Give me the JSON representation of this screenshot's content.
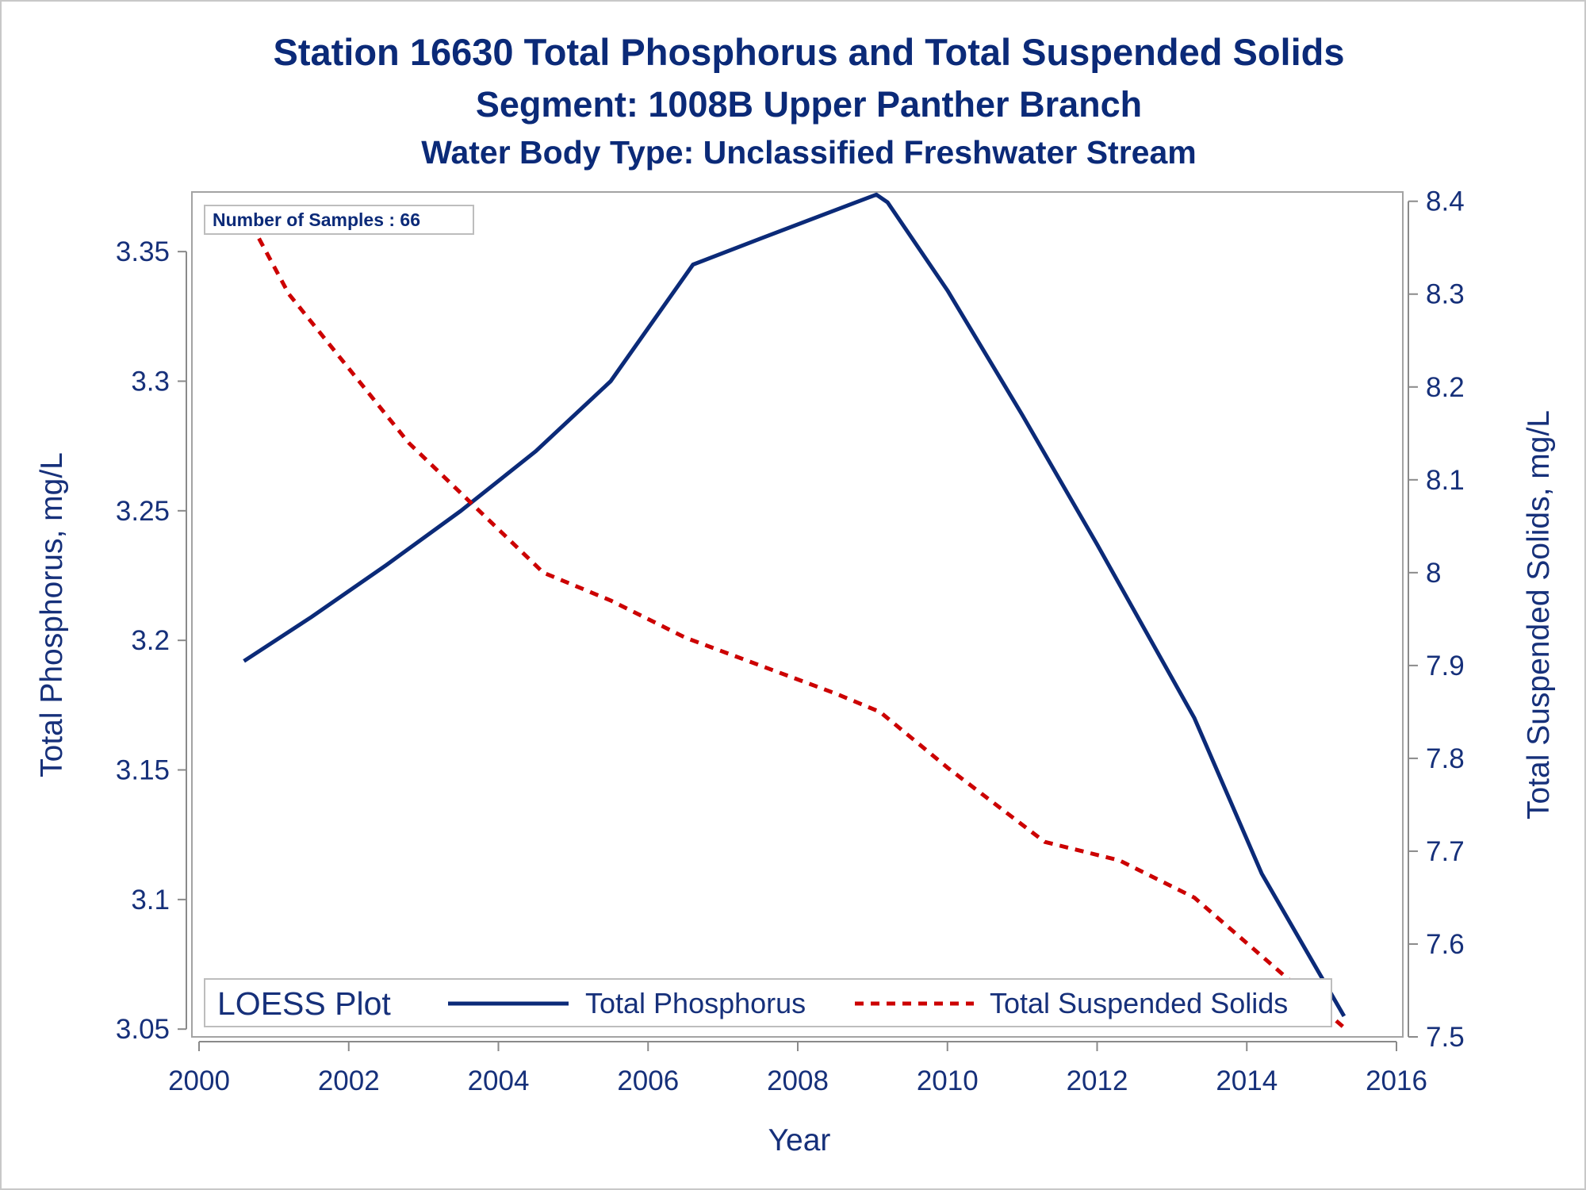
{
  "chart_data": {
    "type": "line",
    "title": "Station 16630  Total Phosphorus and Total Suspended Solids",
    "subtitle": "Segment: 1008B  Upper Panther Branch",
    "subtitle2": "Water Body Type: Unclassified Freshwater Stream",
    "xlabel": "Year",
    "ylabel_left": "Total Phosphorus, mg/L",
    "ylabel_right": "Total Suspended Solids, mg/L",
    "xlim": [
      2000,
      2016
    ],
    "ylim_left": [
      3.047,
      3.373
    ],
    "ylim_right": [
      7.5,
      8.41
    ],
    "x_ticks": [
      2000,
      2002,
      2004,
      2006,
      2008,
      2010,
      2012,
      2014,
      2016
    ],
    "x_tick_labels": [
      "2000",
      "2002",
      "2004",
      "2006",
      "2008",
      "2010",
      "2012",
      "2014",
      "2016"
    ],
    "y_left_ticks": [
      3.05,
      3.1,
      3.15,
      3.2,
      3.25,
      3.3,
      3.35
    ],
    "y_left_tick_labels": [
      "3.05",
      "3.1",
      "3.15",
      "3.2",
      "3.25",
      "3.3",
      "3.35"
    ],
    "y_right_ticks": [
      7.5,
      7.6,
      7.7,
      7.8,
      7.9,
      8.0,
      8.1,
      8.2,
      8.3,
      8.4
    ],
    "y_right_tick_labels": [
      "7.5",
      "7.6",
      "7.7",
      "7.8",
      "7.9",
      "8",
      "8.1",
      "8.2",
      "8.3",
      "8.4"
    ],
    "inset": "Number of Samples : 66",
    "legend": {
      "title": "LOESS Plot",
      "position": "bottom-inside"
    },
    "series": [
      {
        "name": "Total Phosphorus",
        "axis": "left",
        "color": "#0b2a78",
        "dash": "solid",
        "x": [
          2000.6,
          2001.5,
          2002.5,
          2003.5,
          2004.5,
          2005.5,
          2006.6,
          2007.5,
          2008.5,
          2009.05,
          2009.2,
          2010.0,
          2011.0,
          2012.0,
          2013.3,
          2014.2,
          2015.3
        ],
        "y": [
          3.192,
          3.209,
          3.229,
          3.25,
          3.273,
          3.3,
          3.345,
          3.355,
          3.366,
          3.372,
          3.369,
          3.335,
          3.287,
          3.237,
          3.17,
          3.11,
          3.055
        ]
      },
      {
        "name": "Total Suspended Solids",
        "axis": "right",
        "color": "#cc0000",
        "dash": "dashed",
        "x": [
          2000.6,
          2001.2,
          2002.0,
          2002.8,
          2003.7,
          2004.6,
          2005.5,
          2006.5,
          2007.5,
          2008.5,
          2009.1,
          2010.0,
          2011.3,
          2012.3,
          2013.3,
          2014.3,
          2015.3
        ],
        "y": [
          8.39,
          8.3,
          8.22,
          8.14,
          8.07,
          8.0,
          7.97,
          7.93,
          7.9,
          7.87,
          7.85,
          7.79,
          7.71,
          7.69,
          7.65,
          7.58,
          7.51
        ]
      }
    ]
  }
}
